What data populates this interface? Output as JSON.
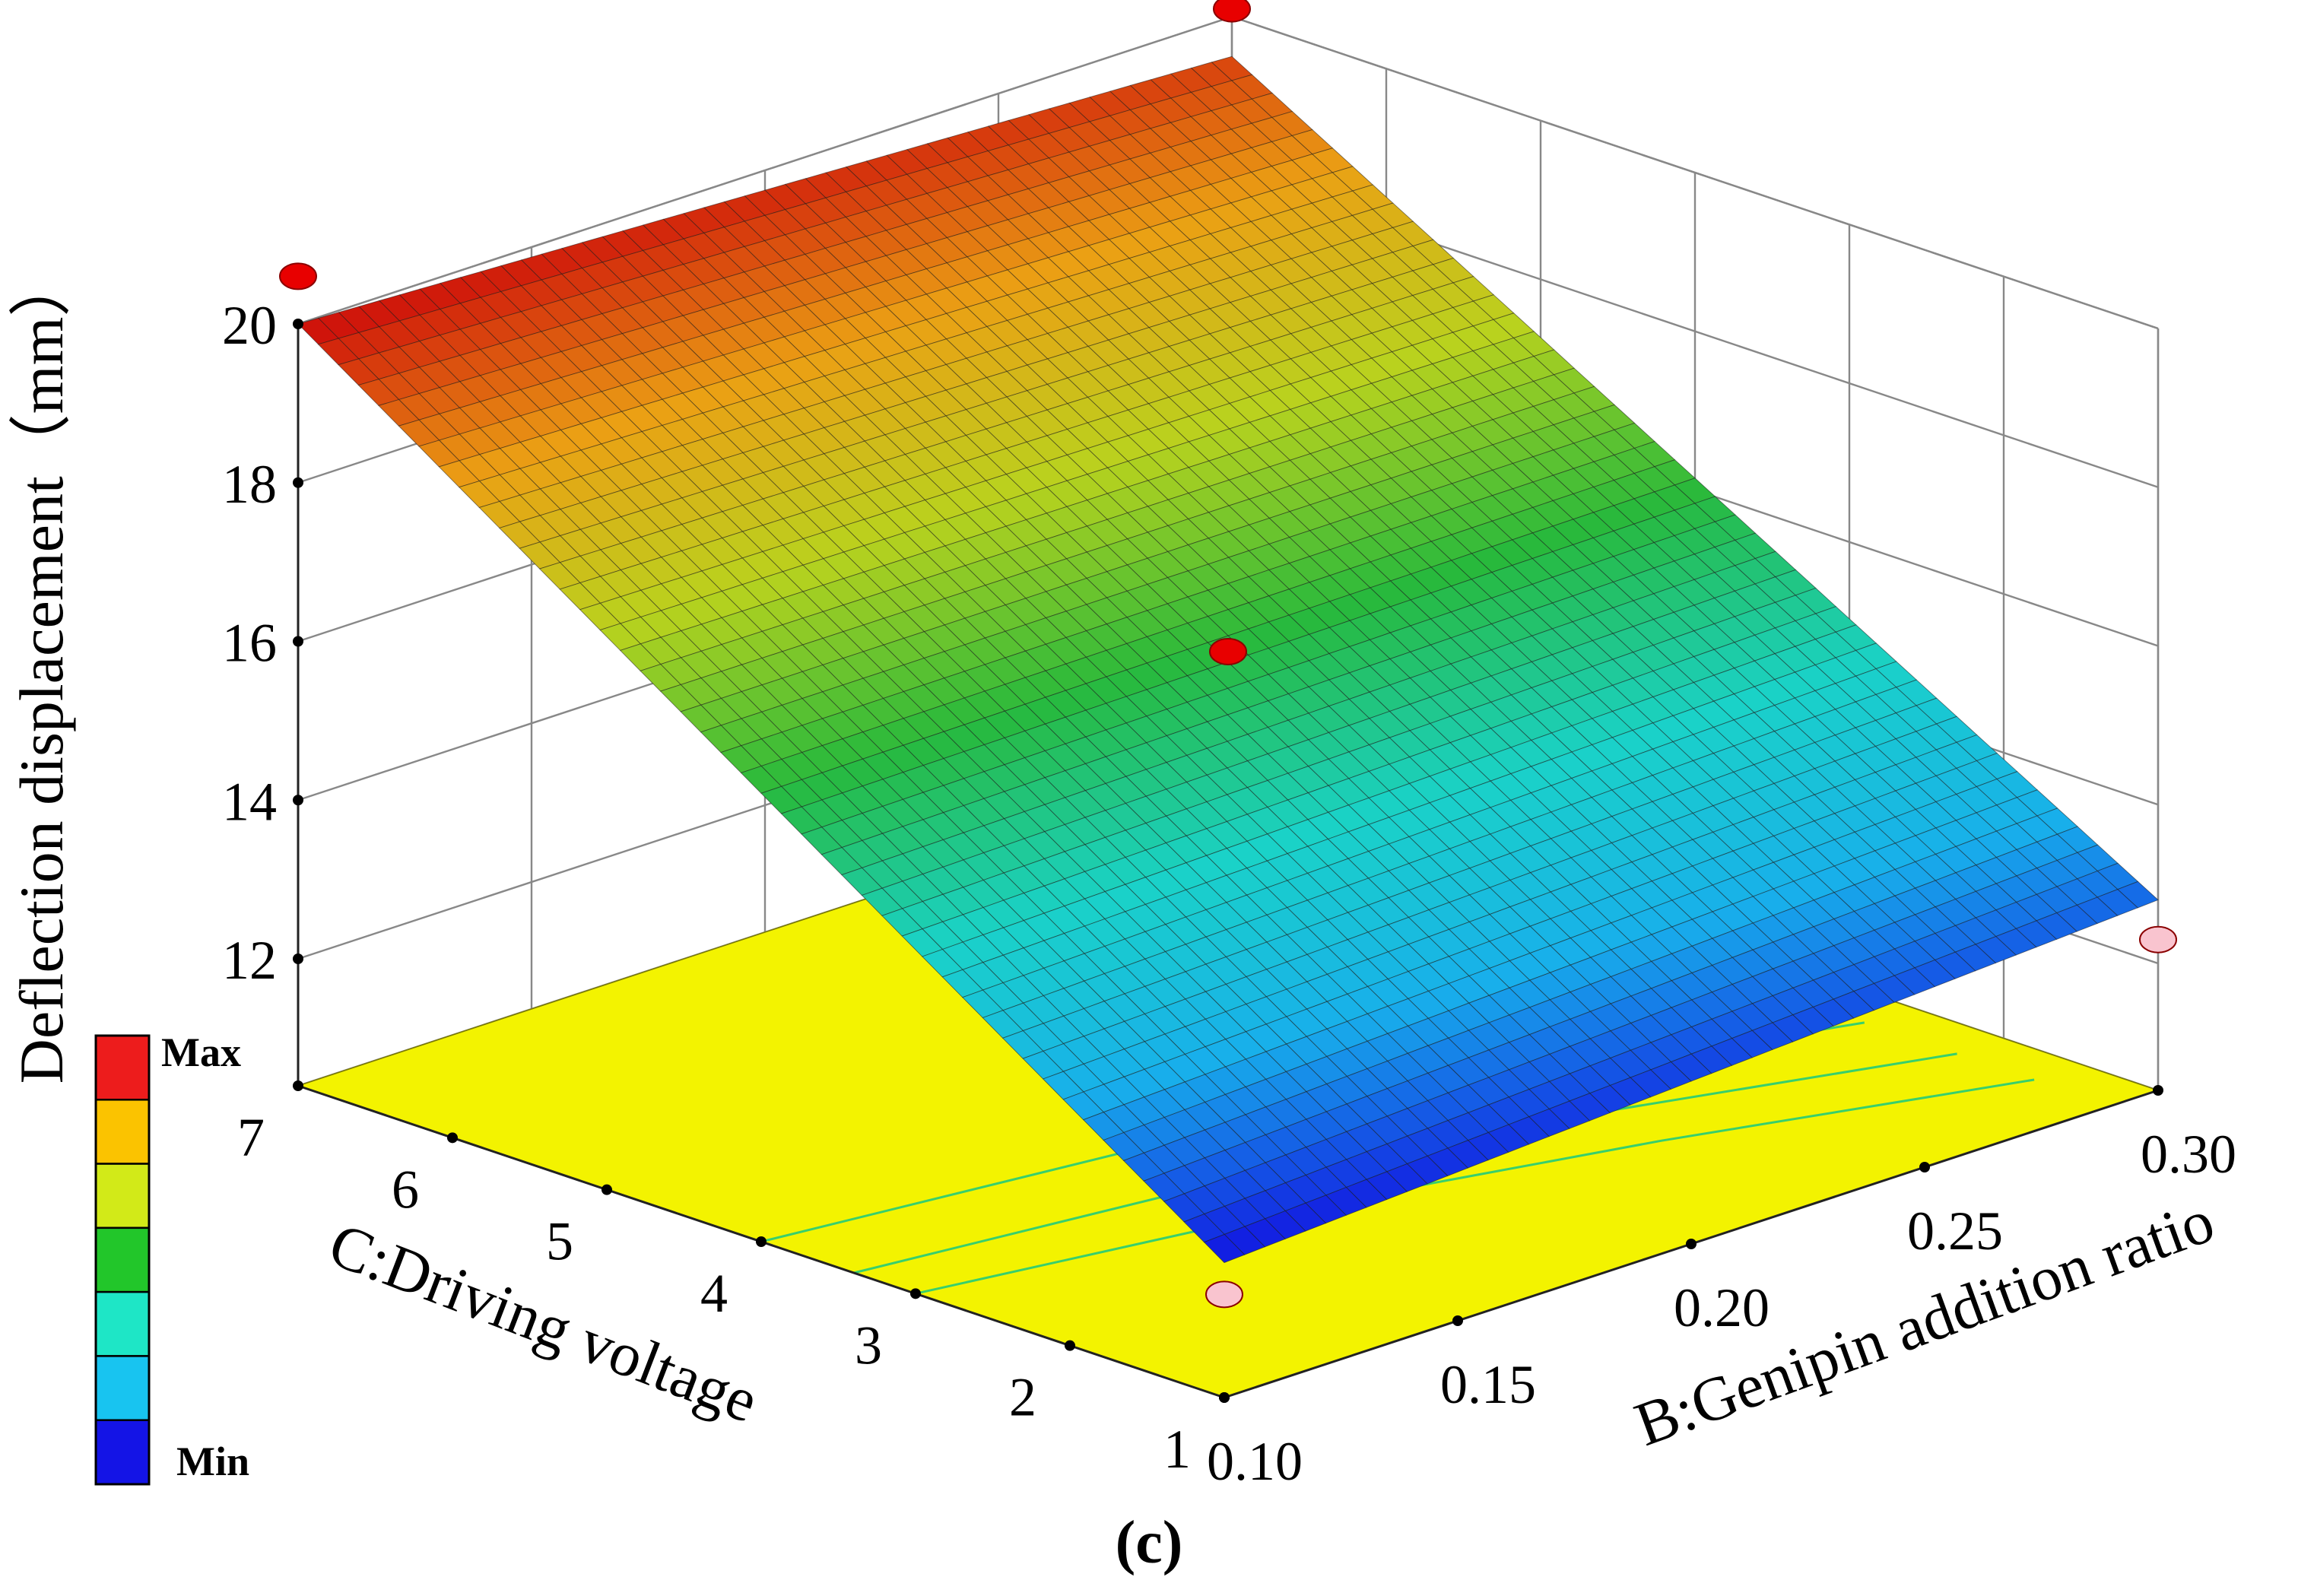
{
  "chart_data": {
    "type": "surface",
    "panel_label": "(c)",
    "x_axis": {
      "label": "B:Genipin addition ratio",
      "range": [
        0.1,
        0.3
      ],
      "ticks": [
        "0.10",
        "0.15",
        "0.20",
        "0.25",
        "0.30"
      ]
    },
    "y_axis": {
      "label": "C:Driving voltage",
      "range": [
        1,
        7
      ],
      "ticks": [
        "1",
        "2",
        "3",
        "4",
        "5",
        "6",
        "7"
      ]
    },
    "z_axis": {
      "label": "Deflection displacement（mm）",
      "range": [
        10.4,
        20
      ],
      "ticks": [
        "12",
        "14",
        "16",
        "18",
        "20"
      ]
    },
    "surface_corners": [
      {
        "x": 0.1,
        "y": 7,
        "z": 20.0
      },
      {
        "x": 0.3,
        "y": 7,
        "z": 19.5
      },
      {
        "x": 0.1,
        "y": 1,
        "z": 12.1
      },
      {
        "x": 0.3,
        "y": 1,
        "z": 12.8
      }
    ],
    "design_points": [
      {
        "x": 0.1,
        "y": 7,
        "z": 20.6,
        "above_surface": true
      },
      {
        "x": 0.3,
        "y": 7,
        "z": 20.1,
        "above_surface": true
      },
      {
        "x": 0.2,
        "y": 4,
        "z": 15.9,
        "above_surface": true
      },
      {
        "x": 0.1,
        "y": 1,
        "z": 11.7,
        "above_surface": false
      },
      {
        "x": 0.3,
        "y": 1,
        "z": 12.3,
        "above_surface": false
      }
    ],
    "floor_contours": [
      {
        "points": [
          [
            0.1,
            4.0
          ],
          [
            0.17,
            3.7
          ],
          [
            0.23,
            3.2
          ],
          [
            0.29,
            2.6
          ]
        ]
      },
      {
        "points": [
          [
            0.1,
            3.4
          ],
          [
            0.17,
            3.1
          ],
          [
            0.23,
            2.6
          ],
          [
            0.29,
            2.0
          ]
        ]
      },
      {
        "points": [
          [
            0.1,
            3.0
          ],
          [
            0.17,
            2.6
          ],
          [
            0.23,
            2.1
          ],
          [
            0.29,
            1.5
          ]
        ]
      }
    ],
    "legend": {
      "max_label": "Max",
      "min_label": "Min",
      "colors": [
        "#ed1c1c",
        "#fbc300",
        "#d2ea18",
        "#22c62a",
        "#1ee6c6",
        "#18c4f0",
        "#1414e6"
      ]
    },
    "colors": {
      "floor": "#f3f300",
      "contour": "#38cf6c",
      "design_point_above": "#e80000",
      "design_point_below": "#f9c4cf",
      "grid": "#888888"
    }
  }
}
